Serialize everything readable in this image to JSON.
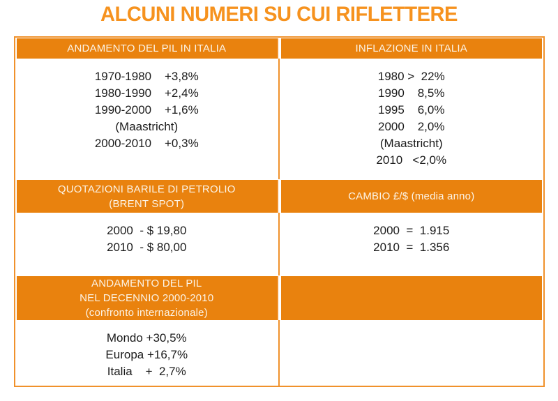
{
  "title": "ALCUNI NUMERI SU CUI RIFLETTERE",
  "colors": {
    "title_orange": "#F6921E",
    "band_orange": "#E9820E",
    "border_orange": "#F0912B",
    "band_text": "#FCF4E7",
    "body_text": "#1B1B1B"
  },
  "table": {
    "rows": [
      {
        "left": {
          "header": "ANDAMENTO DEL PIL IN ITALIA",
          "body": "1970-1980    +3,8%\n1980-1990    +2,4%\n1990-2000    +1,6%\n(Maastricht)\n2000-2010    +0,3%"
        },
        "right": {
          "header": "INFLAZIONE IN ITALIA",
          "body": "1980 >  22%\n1990    8,5%\n1995    6,0%\n2000    2,0%\n(Maastricht)\n2010   <2,0%"
        }
      },
      {
        "left": {
          "header": "QUOTAZIONI BARILE DI PETROLIO\n(BRENT SPOT)",
          "body": "2000  - $ 19,80\n2010  - $ 80,00"
        },
        "right": {
          "header": "CAMBIO £/$ (media anno)",
          "body": "2000  =  1.915\n2010  =  1.356"
        }
      },
      {
        "left": {
          "header": "ANDAMENTO DEL PIL\nNEL DECENNIO 2000-2010\n(confronto internazionale)",
          "body": "Mondo +30,5%\nEuropa +16,7%\nItalia    +  2,7%"
        },
        "right": {
          "header": "",
          "body": ""
        }
      }
    ]
  }
}
